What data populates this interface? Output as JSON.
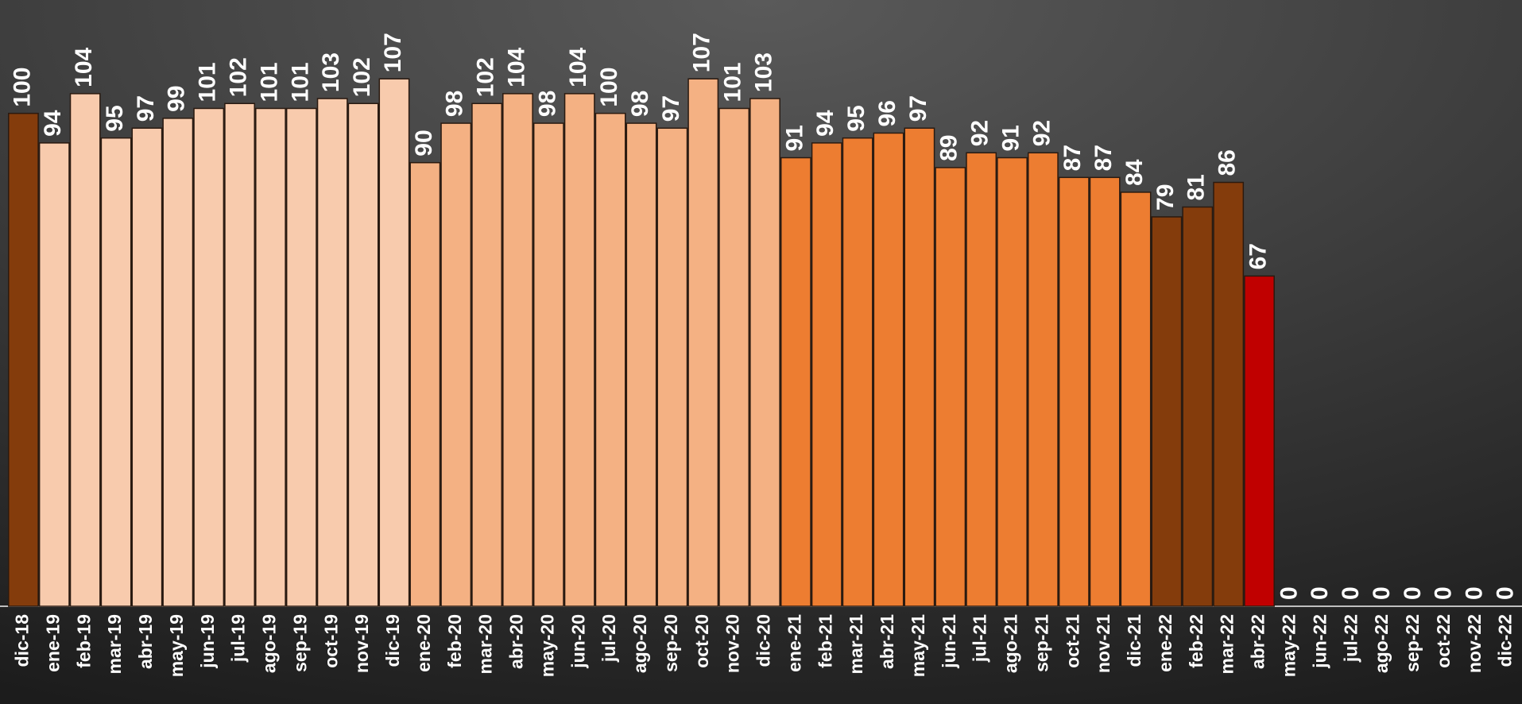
{
  "chart_data": {
    "type": "bar",
    "categories": [
      "dic-18",
      "ene-19",
      "feb-19",
      "mar-19",
      "abr-19",
      "may-19",
      "jun-19",
      "jul-19",
      "ago-19",
      "sep-19",
      "oct-19",
      "nov-19",
      "dic-19",
      "ene-20",
      "feb-20",
      "mar-20",
      "abr-20",
      "may-20",
      "jun-20",
      "jul-20",
      "ago-20",
      "sep-20",
      "oct-20",
      "nov-20",
      "dic-20",
      "ene-21",
      "feb-21",
      "mar-21",
      "abr-21",
      "may-21",
      "jun-21",
      "jul-21",
      "ago-21",
      "sep-21",
      "oct-21",
      "nov-21",
      "dic-21",
      "ene-22",
      "feb-22",
      "mar-22",
      "abr-22",
      "may-22",
      "jun-22",
      "jul-22",
      "ago-22",
      "sep-22",
      "oct-22",
      "nov-22",
      "dic-22"
    ],
    "values": [
      100,
      94,
      104,
      95,
      97,
      99,
      101,
      102,
      101,
      101,
      103,
      102,
      107,
      90,
      98,
      102,
      104,
      98,
      104,
      100,
      98,
      97,
      107,
      101,
      103,
      91,
      94,
      95,
      96,
      97,
      89,
      92,
      91,
      92,
      87,
      87,
      84,
      79,
      81,
      86,
      67,
      0,
      0,
      0,
      0,
      0,
      0,
      0,
      0
    ],
    "colors": [
      "#843c0c",
      "#f8cbad",
      "#f8cbad",
      "#f8cbad",
      "#f8cbad",
      "#f8cbad",
      "#f8cbad",
      "#f8cbad",
      "#f8cbad",
      "#f8cbad",
      "#f8cbad",
      "#f8cbad",
      "#f8cbad",
      "#f4b183",
      "#f4b183",
      "#f4b183",
      "#f4b183",
      "#f4b183",
      "#f4b183",
      "#f4b183",
      "#f4b183",
      "#f4b183",
      "#f4b183",
      "#f4b183",
      "#f4b183",
      "#ed7d31",
      "#ed7d31",
      "#ed7d31",
      "#ed7d31",
      "#ed7d31",
      "#ed7d31",
      "#ed7d31",
      "#ed7d31",
      "#ed7d31",
      "#ed7d31",
      "#ed7d31",
      "#ed7d31",
      "#843c0c",
      "#843c0c",
      "#843c0c",
      "#c00000",
      "#843c0c",
      "#843c0c",
      "#843c0c",
      "#843c0c",
      "#843c0c",
      "#843c0c",
      "#843c0c",
      "#843c0c"
    ],
    "ylim": [
      0,
      123
    ]
  }
}
